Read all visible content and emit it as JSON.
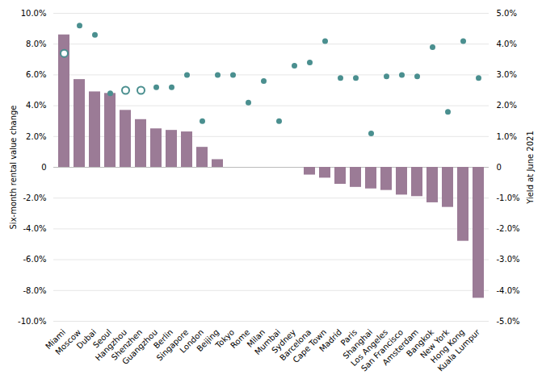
{
  "chart_data": {
    "type": "bar",
    "categories": [
      "Miami",
      "Moscow",
      "Dubai",
      "Seoul",
      "Hangzhou",
      "Shenzhen",
      "Guangzhou",
      "Berlin",
      "Singapore",
      "London",
      "Beijing",
      "Tokyo",
      "Rome",
      "Milan",
      "Mumbai",
      "Sydney",
      "Barcelona",
      "Cape Town",
      "Madrid",
      "Paris",
      "Shanghai",
      "Los Angeles",
      "San Francisco",
      "Amsterdam",
      "Bangkok",
      "New York",
      "Hong Kong",
      "Kuala Lumpur"
    ],
    "series": [
      {
        "type": "bar",
        "color": "#9b7b96",
        "values": [
          8.6,
          5.7,
          4.9,
          4.8,
          3.7,
          3.1,
          2.5,
          2.4,
          2.3,
          1.3,
          0.5,
          0.0,
          0.0,
          0.0,
          0.0,
          0.0,
          -0.5,
          -0.7,
          -1.1,
          -1.3,
          -1.4,
          -1.5,
          -1.8,
          -1.9,
          -2.3,
          -2.6,
          -4.8,
          -8.5
        ]
      },
      {
        "type": "scatter",
        "axis": "y2",
        "color": "#4a8f8f",
        "marker": "circle",
        "values": [
          null,
          4.6,
          4.3,
          2.4,
          null,
          null,
          2.6,
          2.6,
          3.0,
          1.5,
          3.0,
          3.0,
          2.1,
          2.8,
          1.5,
          3.3,
          3.4,
          4.1,
          2.9,
          2.9,
          1.1,
          2.95,
          3.0,
          2.95,
          3.9,
          1.8,
          4.1,
          2.9
        ]
      },
      {
        "type": "scatter",
        "axis": "y2",
        "color": "#4a8f8f",
        "marker": "hollow_circle",
        "values": [
          3.7,
          null,
          null,
          null,
          2.5,
          2.5,
          null,
          null,
          null,
          null,
          null,
          null,
          null,
          null,
          null,
          null,
          null,
          null,
          null,
          null,
          null,
          null,
          null,
          null,
          null,
          null,
          null,
          null
        ]
      }
    ],
    "ylabel": "Six-month rental value change",
    "y2label": "Yield at June 2021",
    "ylim": [
      -10.0,
      10.0
    ],
    "yticks": [
      {
        "value": -10.0,
        "label": "-10.0%"
      },
      {
        "value": -8.0,
        "label": "-8.0%"
      },
      {
        "value": -6.0,
        "label": "-6.0%"
      },
      {
        "value": -4.0,
        "label": "-4.0%"
      },
      {
        "value": -2.0,
        "label": "-2.0%"
      },
      0,
      {
        "value": 2.0,
        "label": "2.0%"
      },
      {
        "value": 4.0,
        "label": "4.0%"
      },
      {
        "value": 6.0,
        "label": "6.0%"
      },
      {
        "value": 8.0,
        "label": "8.0%"
      },
      {
        "value": 10.0,
        "label": "10.0%"
      }
    ],
    "y2lim": [
      -5.0,
      5.0
    ],
    "y2ticks": [
      {
        "value": -5.0,
        "label": "-5.0%"
      },
      {
        "value": -4.0,
        "label": "-4.0%"
      },
      {
        "value": -3.0,
        "label": "-3.0%"
      },
      {
        "value": -2.0,
        "label": "-2.0%"
      },
      {
        "value": -1.0,
        "label": "-1.0%"
      },
      0,
      {
        "value": 1.0,
        "label": "1.0%"
      },
      {
        "value": 2.0,
        "label": "2.0%"
      },
      {
        "value": 3.0,
        "label": "3.0%"
      },
      {
        "value": 4.0,
        "label": "4.0%"
      },
      {
        "value": 5.0,
        "label": "5.0%"
      }
    ],
    "grid": true
  }
}
